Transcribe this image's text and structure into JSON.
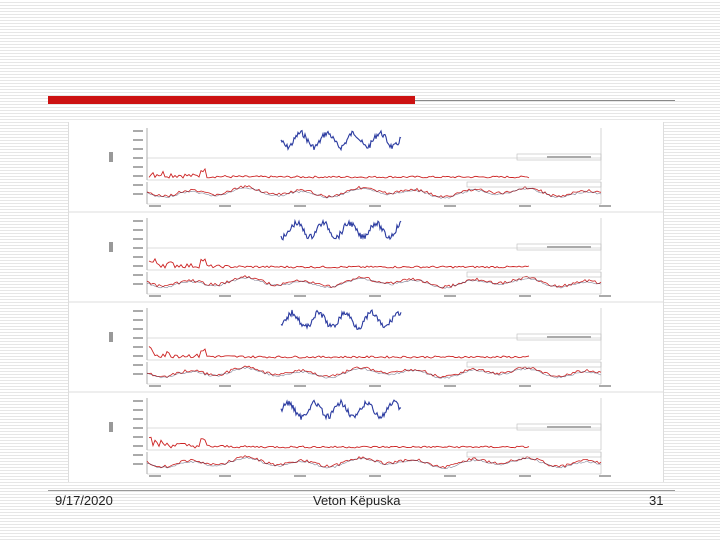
{
  "footer": {
    "date": "9/17/2020",
    "author": "Veton Këpuska",
    "page": "31"
  },
  "figure": {
    "panel_count": 4,
    "colors": {
      "waveform": "#2a3aa0",
      "spectrum": "#cc2222",
      "grid": "#999999",
      "accent_bar": "#cc1111"
    }
  }
}
